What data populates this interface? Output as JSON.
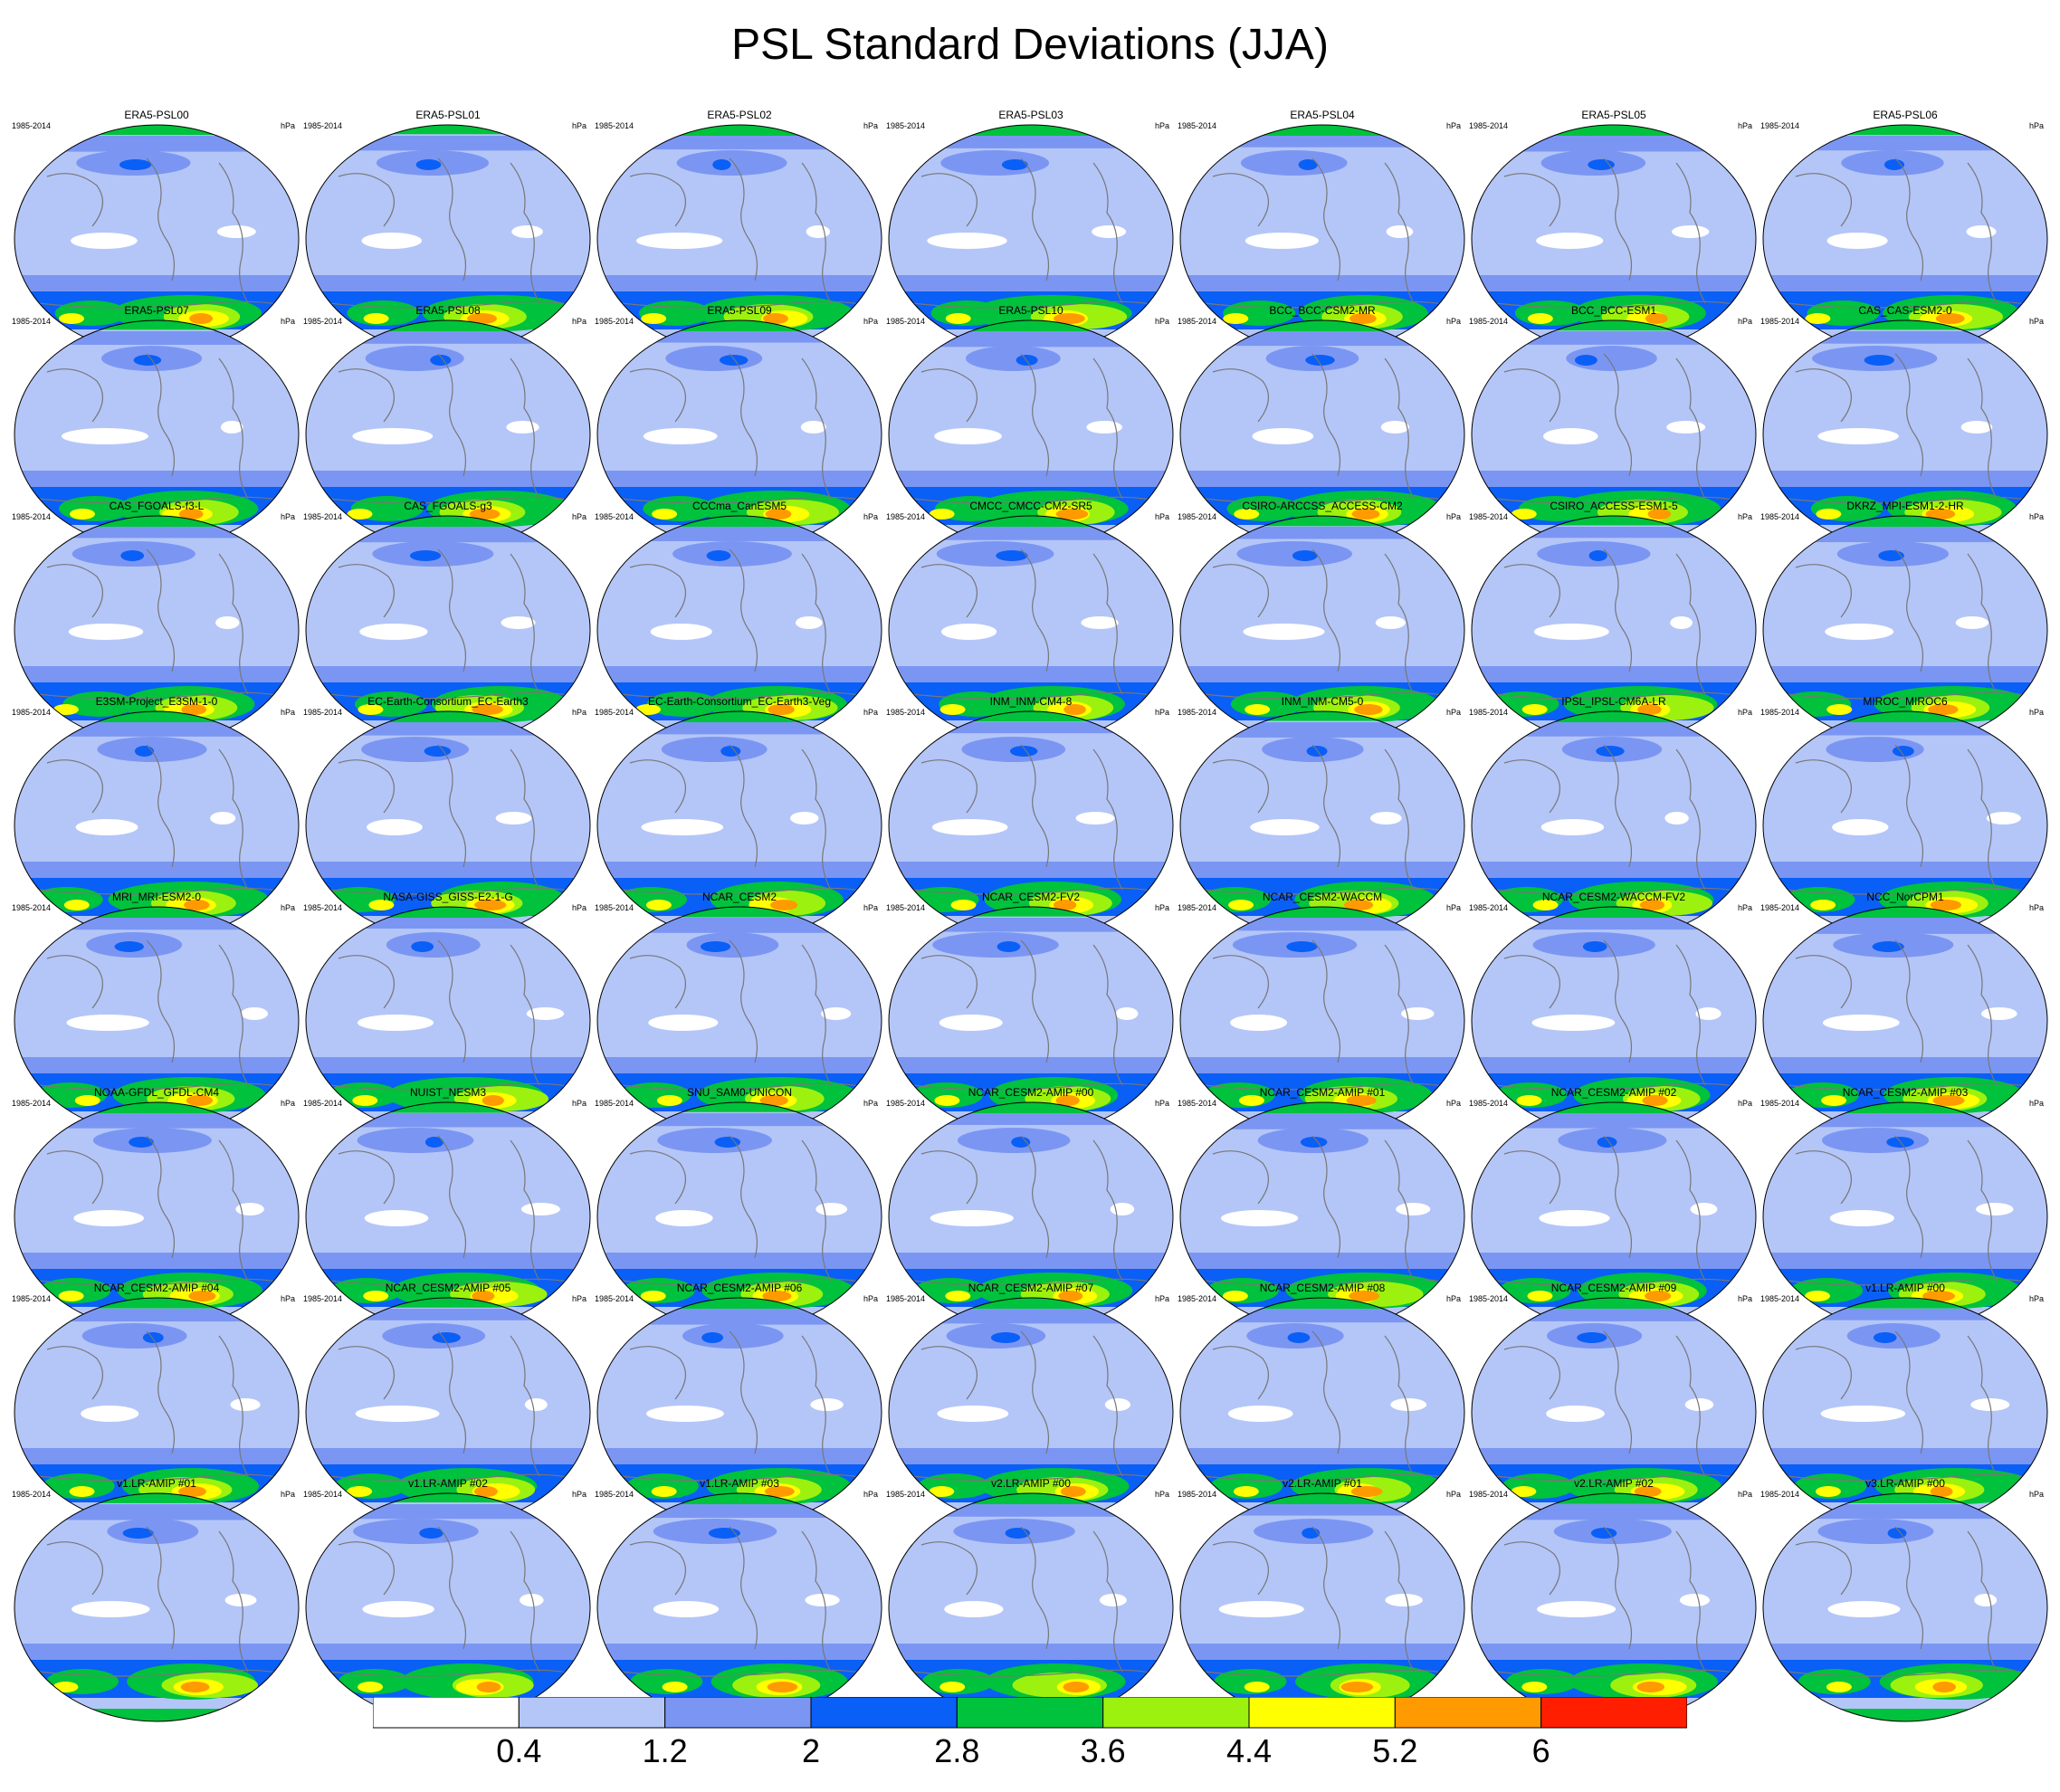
{
  "title": "PSL Standard Deviations (JJA)",
  "panel_years": "1985-2014",
  "panel_units": "hPa",
  "panels": [
    "ERA5-PSL00",
    "ERA5-PSL01",
    "ERA5-PSL02",
    "ERA5-PSL03",
    "ERA5-PSL04",
    "ERA5-PSL05",
    "ERA5-PSL06",
    "ERA5-PSL07",
    "ERA5-PSL08",
    "ERA5-PSL09",
    "ERA5-PSL10",
    "BCC_BCC-CSM2-MR",
    "BCC_BCC-ESM1",
    "CAS_CAS-ESM2-0",
    "CAS_FGOALS-f3-L",
    "CAS_FGOALS-g3",
    "CCCma_CanESM5",
    "CMCC_CMCC-CM2-SR5",
    "CSIRO-ARCCSS_ACCESS-CM2",
    "CSIRO_ACCESS-ESM1-5",
    "DKRZ_MPI-ESM1-2-HR",
    "E3SM-Project_E3SM-1-0",
    "EC-Earth-Consortium_EC-Earth3",
    "EC-Earth-Consortium_EC-Earth3-Veg",
    "INM_INM-CM4-8",
    "INM_INM-CM5-0",
    "IPSL_IPSL-CM6A-LR",
    "MIROC_MIROC6",
    "MRI_MRI-ESM2-0",
    "NASA-GISS_GISS-E2-1-G",
    "NCAR_CESM2",
    "NCAR_CESM2-FV2",
    "NCAR_CESM2-WACCM",
    "NCAR_CESM2-WACCM-FV2",
    "NCC_NorCPM1",
    "NOAA-GFDL_GFDL-CM4",
    "NUIST_NESM3",
    "SNU_SAM0-UNICON",
    "NCAR_CESM2-AMIP  #00",
    "NCAR_CESM2-AMIP  #01",
    "NCAR_CESM2-AMIP  #02",
    "NCAR_CESM2-AMIP  #03",
    "NCAR_CESM2-AMIP  #04",
    "NCAR_CESM2-AMIP  #05",
    "NCAR_CESM2-AMIP  #06",
    "NCAR_CESM2-AMIP  #07",
    "NCAR_CESM2-AMIP  #08",
    "NCAR_CESM2-AMIP  #09",
    "v1.LR-AMIP  #00",
    "v1.LR-AMIP  #01",
    "v1.LR-AMIP  #02",
    "v1.LR-AMIP  #03",
    "v2.LR-AMIP  #00",
    "v2.LR-AMIP  #01",
    "v2.LR-AMIP  #02",
    "v3.LR-AMIP  #00"
  ],
  "colorbar": {
    "colors": [
      "#ffffff",
      "#b4c6f8",
      "#7b96f2",
      "#0a5ff6",
      "#00c23c",
      "#9cf20e",
      "#ffff00",
      "#ff9a00",
      "#ff1e00"
    ],
    "labels": [
      "0.4",
      "1.2",
      "2",
      "2.8",
      "3.6",
      "4.4",
      "5.2",
      "6"
    ]
  },
  "chart_data": {
    "type": "heatmap",
    "variable": "PSL",
    "statistic": "Standard Deviations",
    "season": "JJA",
    "period": "1985-2014",
    "units": "hPa",
    "projection": "Robinson",
    "levels": [
      0.4,
      1.2,
      2,
      2.8,
      3.6,
      4.4,
      5.2,
      6
    ],
    "layout": {
      "rows": 8,
      "columns": 7
    }
  }
}
